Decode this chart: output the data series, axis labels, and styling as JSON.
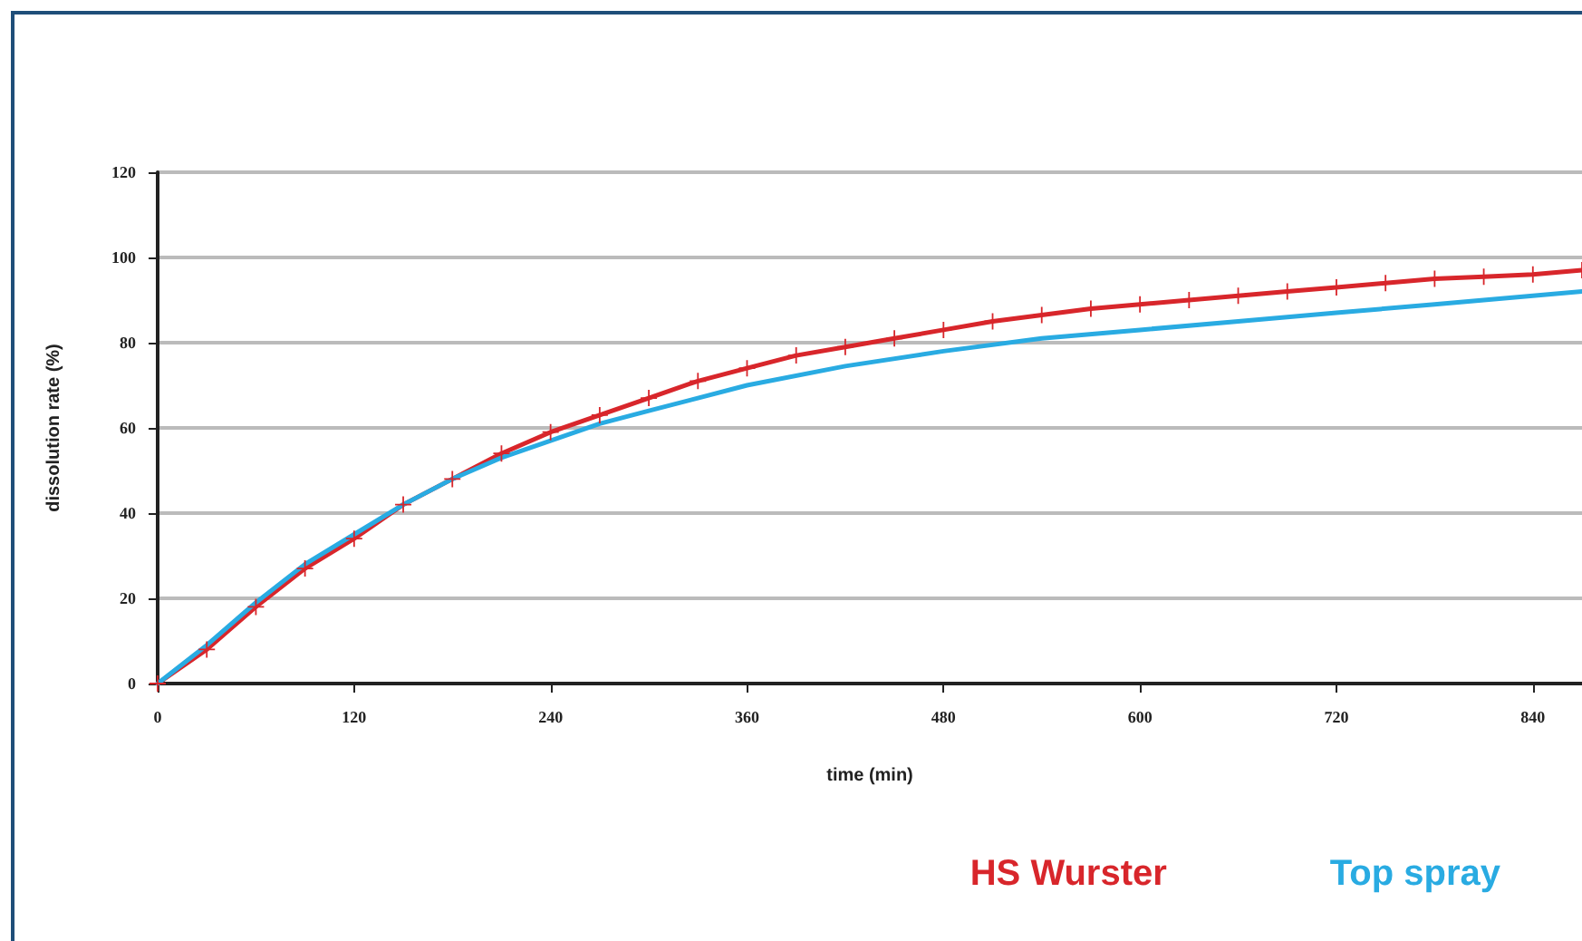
{
  "chart_data": {
    "type": "line",
    "xlabel": "time (min)",
    "ylabel": "dissolution rate (%)",
    "xlim": [
      0,
      870
    ],
    "xticks": [
      0,
      120,
      240,
      360,
      480,
      600,
      720,
      840
    ],
    "ylim": [
      0,
      120
    ],
    "yticks": [
      0,
      20,
      40,
      60,
      80,
      100,
      120
    ],
    "grid": "y",
    "legend": "bottom right",
    "series": [
      {
        "name": "HS Wurster",
        "color": "#d8262b",
        "marker": "cross",
        "x": [
          0,
          30,
          60,
          90,
          120,
          150,
          180,
          210,
          240,
          270,
          300,
          330,
          360,
          390,
          420,
          450,
          480,
          510,
          540,
          570,
          600,
          630,
          660,
          690,
          720,
          750,
          780,
          810,
          840,
          870
        ],
        "values": [
          0,
          8,
          18,
          27,
          34,
          42,
          48,
          54,
          59,
          63,
          67,
          71,
          74,
          77,
          79,
          81,
          83,
          85,
          86.5,
          88,
          89,
          90,
          91,
          92,
          93,
          94,
          95,
          95.5,
          96,
          97
        ]
      },
      {
        "name": "Top spray",
        "color": "#29abe2",
        "marker": "none",
        "x": [
          0,
          30,
          60,
          90,
          120,
          150,
          180,
          210,
          240,
          270,
          300,
          330,
          360,
          420,
          480,
          540,
          600,
          660,
          720,
          780,
          840,
          870
        ],
        "values": [
          0,
          9,
          19,
          28,
          35,
          42,
          48,
          53,
          57,
          61,
          64,
          67,
          70,
          74.5,
          78,
          81,
          83,
          85,
          87,
          89,
          91,
          92
        ]
      }
    ]
  }
}
